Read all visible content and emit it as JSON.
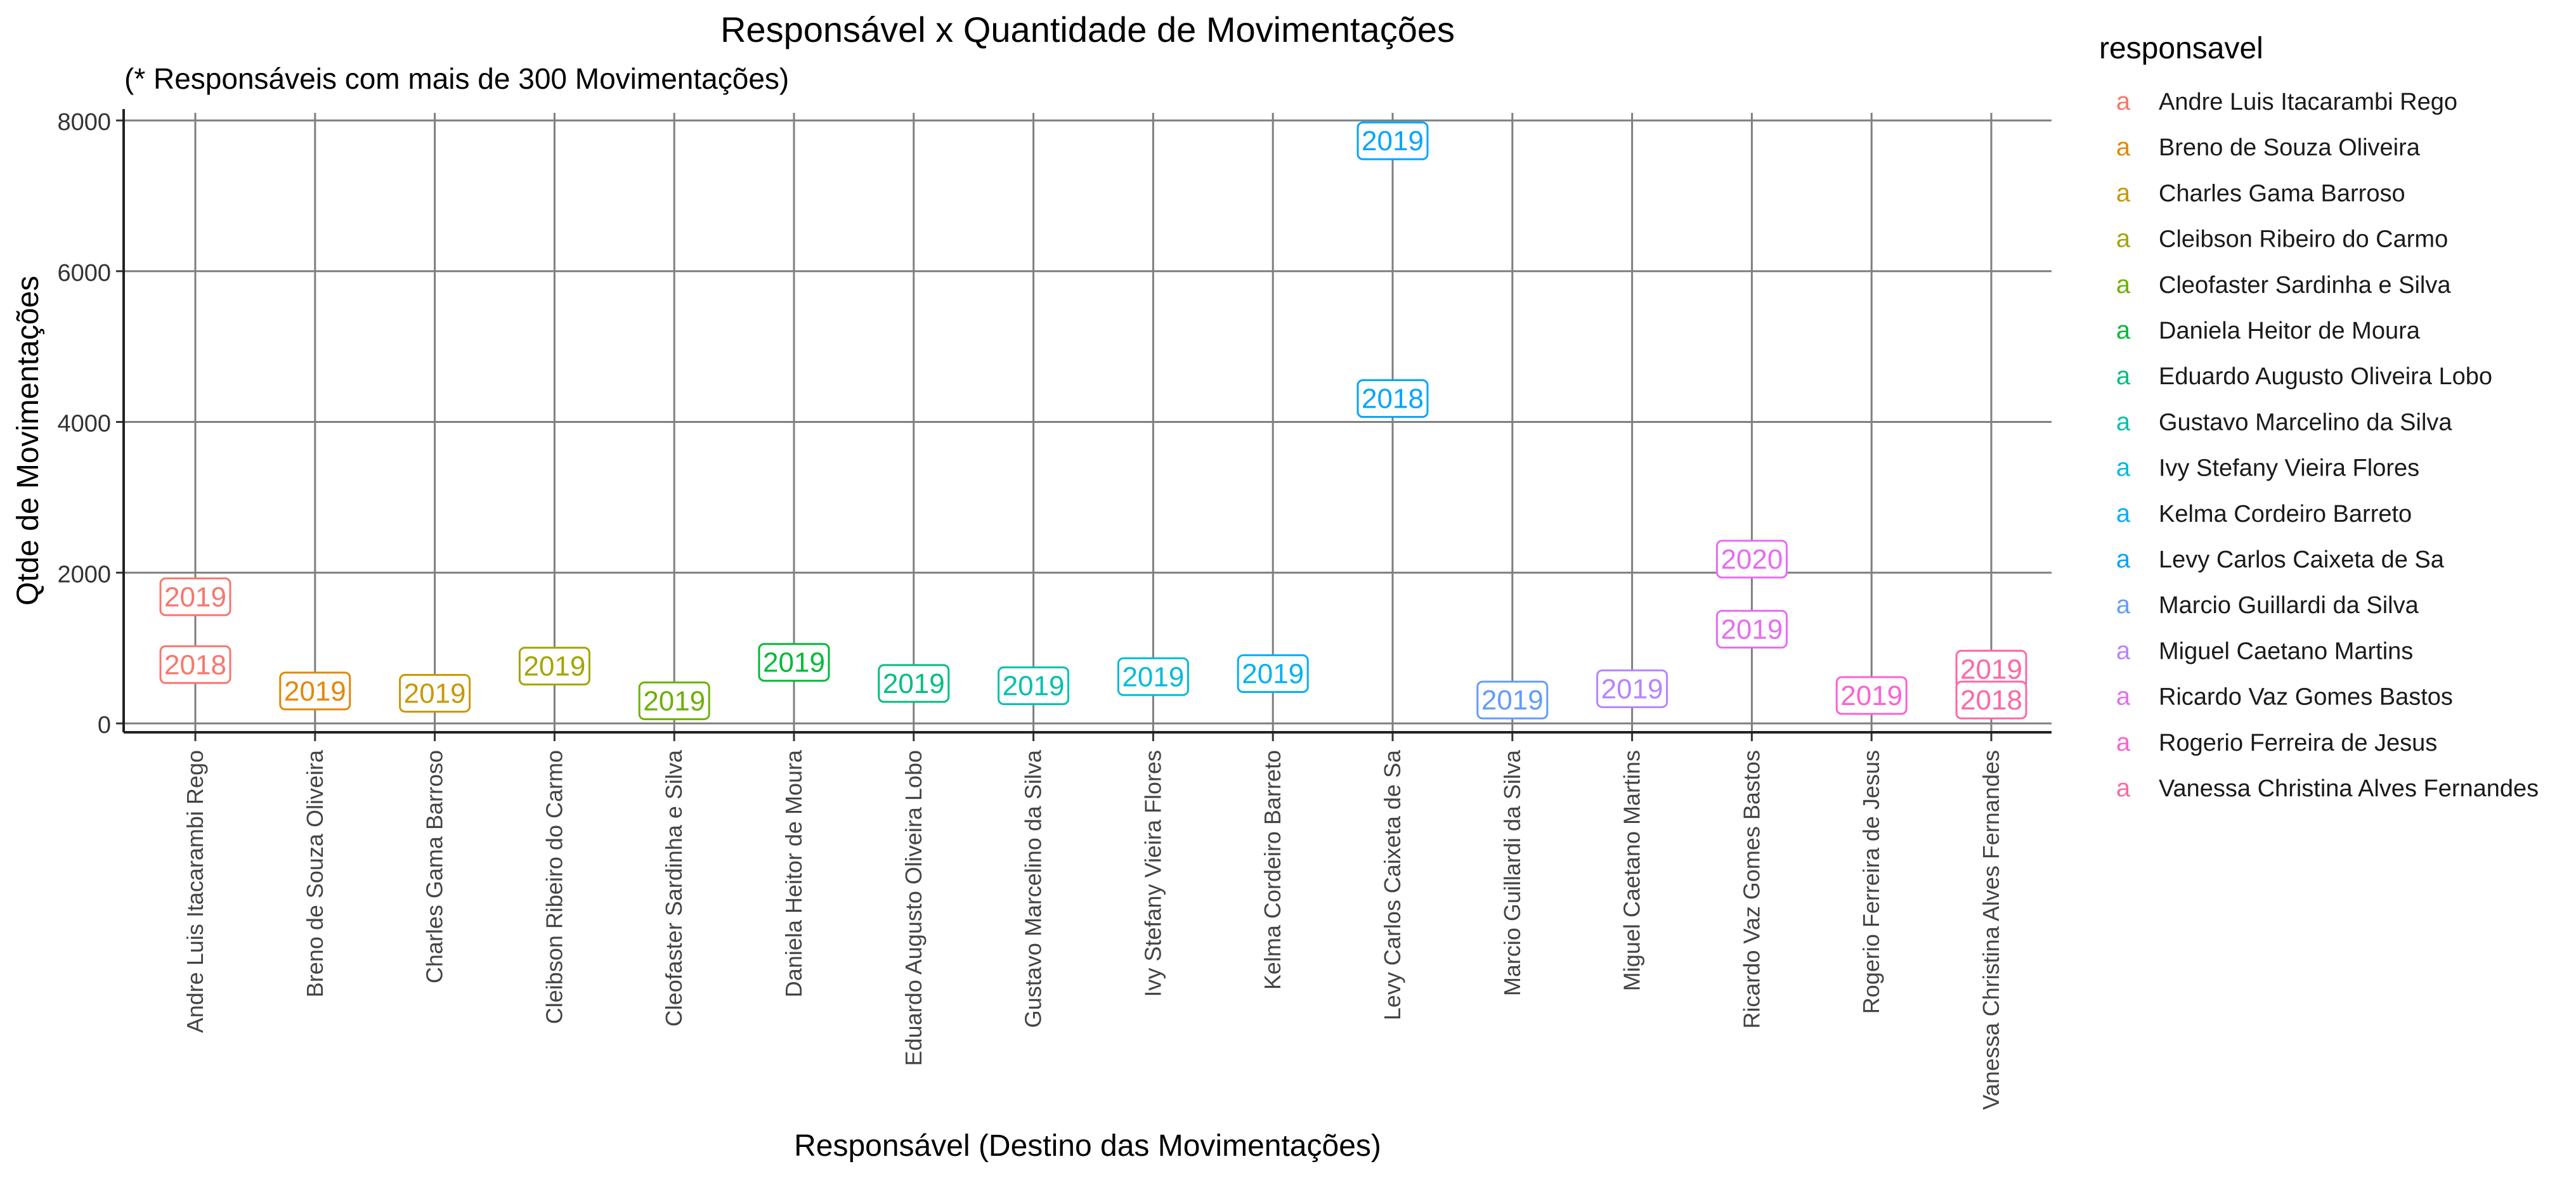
{
  "chart_data": {
    "type": "scatter",
    "title": "Responsável x Quantidade de Movimentações",
    "subtitle": "(* Responsáveis com mais de 300 Movimentações)",
    "xlabel": "Responsável (Destino das Movimentações)",
    "ylabel": "Qtde de Movimentações",
    "ylim": [
      0,
      8000
    ],
    "yticks": [
      0,
      2000,
      4000,
      6000,
      8000
    ],
    "grid": true,
    "legend": {
      "title": "responsavel",
      "placement": "right"
    },
    "categories": [
      "Andre Luis Itacarambi Rego",
      "Breno de Souza Oliveira",
      "Charles Gama Barroso",
      "Cleibson Ribeiro do Carmo",
      "Cleofaster Sardinha e Silva",
      "Daniela Heitor de Moura",
      "Eduardo Augusto Oliveira Lobo",
      "Gustavo Marcelino da Silva",
      "Ivy Stefany Vieira Flores",
      "Kelma Cordeiro Barreto",
      "Levy Carlos Caixeta de Sa",
      "Marcio Guillardi da Silva",
      "Miguel Caetano Martins",
      "Ricardo Vaz Gomes Bastos",
      "Rogerio Ferreira de Jesus",
      "Vanessa Christina Alves Fernandes"
    ],
    "colors": [
      "#F8766D",
      "#E58700",
      "#C99800",
      "#A3A500",
      "#6BB100",
      "#00BA38",
      "#00BF7D",
      "#00C0AF",
      "#00BCD8",
      "#00B0F6",
      "#00A5FF",
      "#619CFF",
      "#B983FF",
      "#E76BF3",
      "#FD61D1",
      "#FF67A4"
    ],
    "legend_key_symbol": "a",
    "points": [
      {
        "category": "Andre Luis Itacarambi Rego",
        "year": "2019",
        "value": 1680
      },
      {
        "category": "Andre Luis Itacarambi Rego",
        "year": "2018",
        "value": 780
      },
      {
        "category": "Breno de Souza Oliveira",
        "year": "2019",
        "value": 430
      },
      {
        "category": "Charles Gama Barroso",
        "year": "2019",
        "value": 400
      },
      {
        "category": "Cleibson Ribeiro do Carmo",
        "year": "2019",
        "value": 760
      },
      {
        "category": "Cleofaster Sardinha e Silva",
        "year": "2019",
        "value": 300
      },
      {
        "category": "Daniela Heitor de Moura",
        "year": "2019",
        "value": 810
      },
      {
        "category": "Eduardo Augusto Oliveira Lobo",
        "year": "2019",
        "value": 530
      },
      {
        "category": "Gustavo Marcelino da Silva",
        "year": "2019",
        "value": 500
      },
      {
        "category": "Ivy Stefany Vieira Flores",
        "year": "2019",
        "value": 620
      },
      {
        "category": "Kelma Cordeiro Barreto",
        "year": "2019",
        "value": 660
      },
      {
        "category": "Levy Carlos Caixeta de Sa",
        "year": "2019",
        "value": 7730
      },
      {
        "category": "Levy Carlos Caixeta de Sa",
        "year": "2018",
        "value": 4310
      },
      {
        "category": "Marcio Guillardi da Silva",
        "year": "2019",
        "value": 310
      },
      {
        "category": "Miguel Caetano Martins",
        "year": "2019",
        "value": 460
      },
      {
        "category": "Ricardo Vaz Gomes Bastos",
        "year": "2020",
        "value": 2180
      },
      {
        "category": "Ricardo Vaz Gomes Bastos",
        "year": "2019",
        "value": 1250
      },
      {
        "category": "Rogerio Ferreira de Jesus",
        "year": "2019",
        "value": 370
      },
      {
        "category": "Vanessa Christina Alves Fernandes",
        "year": "2019",
        "value": 720
      },
      {
        "category": "Vanessa Christina Alves Fernandes",
        "year": "2018",
        "value": 310
      }
    ]
  }
}
